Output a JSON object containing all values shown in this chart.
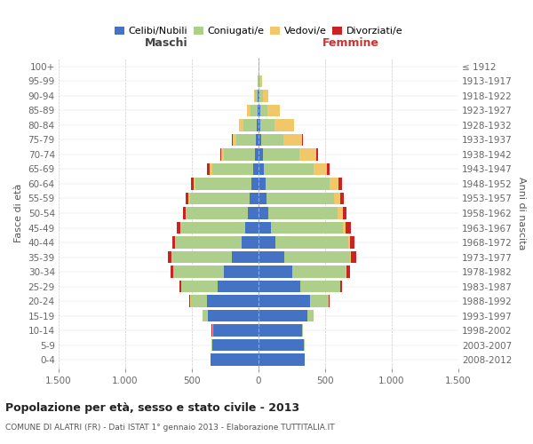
{
  "age_groups": [
    "0-4",
    "5-9",
    "10-14",
    "15-19",
    "20-24",
    "25-29",
    "30-34",
    "35-39",
    "40-44",
    "45-49",
    "50-54",
    "55-59",
    "60-64",
    "65-69",
    "70-74",
    "75-79",
    "80-84",
    "85-89",
    "90-94",
    "95-99",
    "100+"
  ],
  "birth_years": [
    "2008-2012",
    "2003-2007",
    "1998-2002",
    "1993-1997",
    "1988-1992",
    "1983-1987",
    "1978-1982",
    "1973-1977",
    "1968-1972",
    "1963-1967",
    "1958-1962",
    "1953-1957",
    "1948-1952",
    "1943-1947",
    "1938-1942",
    "1933-1937",
    "1928-1932",
    "1923-1927",
    "1918-1922",
    "1913-1917",
    "≤ 1912"
  ],
  "male": {
    "celibe": [
      360,
      350,
      340,
      380,
      390,
      310,
      260,
      200,
      130,
      100,
      80,
      65,
      55,
      40,
      30,
      20,
      15,
      10,
      5,
      2,
      0
    ],
    "coniugato": [
      3,
      5,
      10,
      40,
      120,
      270,
      380,
      450,
      490,
      480,
      460,
      450,
      420,
      310,
      230,
      150,
      100,
      50,
      20,
      5,
      0
    ],
    "vedovo": [
      0,
      0,
      0,
      1,
      2,
      2,
      3,
      5,
      5,
      8,
      10,
      15,
      15,
      20,
      20,
      25,
      30,
      25,
      10,
      3,
      0
    ],
    "divorziato": [
      0,
      0,
      1,
      2,
      5,
      10,
      20,
      25,
      25,
      25,
      20,
      20,
      20,
      15,
      10,
      5,
      0,
      0,
      0,
      0,
      0
    ]
  },
  "female": {
    "nubile": [
      345,
      340,
      325,
      365,
      385,
      315,
      255,
      195,
      125,
      90,
      75,
      60,
      55,
      40,
      30,
      20,
      15,
      10,
      5,
      2,
      0
    ],
    "coniugata": [
      3,
      5,
      10,
      45,
      140,
      295,
      400,
      490,
      545,
      540,
      520,
      505,
      475,
      375,
      275,
      165,
      105,
      55,
      25,
      8,
      2
    ],
    "vedova": [
      0,
      0,
      0,
      1,
      2,
      3,
      6,
      10,
      15,
      25,
      35,
      50,
      70,
      100,
      130,
      140,
      145,
      95,
      40,
      15,
      2
    ],
    "divorziata": [
      0,
      0,
      1,
      2,
      5,
      16,
      28,
      38,
      38,
      38,
      33,
      28,
      28,
      18,
      12,
      6,
      0,
      0,
      0,
      0,
      0
    ]
  },
  "colors": {
    "celibe_nubile": "#4472C4",
    "coniugato": "#AECF8C",
    "vedovo": "#F2C76A",
    "divorziato": "#CC2222"
  },
  "xlim": 1500,
  "title": "Popolazione per età, sesso e stato civile - 2013",
  "subtitle": "COMUNE DI ALATRI (FR) - Dati ISTAT 1° gennaio 2013 - Elaborazione TUTTITALIA.IT",
  "ylabel_left": "Fasce di età",
  "ylabel_right": "Anni di nascita",
  "xlabel_left": "Maschi",
  "xlabel_right": "Femmine"
}
